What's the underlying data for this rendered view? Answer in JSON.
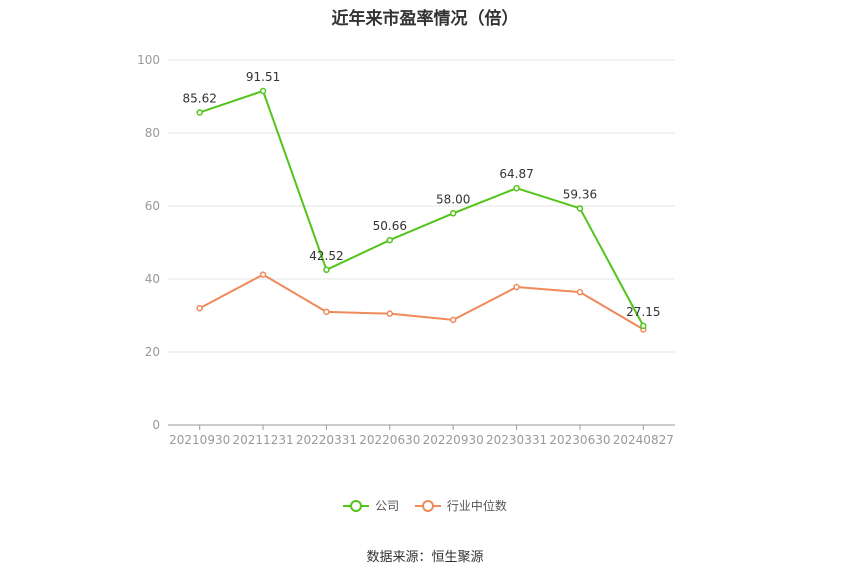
{
  "chart_data": {
    "type": "line",
    "title": "近年来市盈率情况（倍）",
    "categories": [
      "20210930",
      "20211231",
      "20220331",
      "20220630",
      "20220930",
      "20230331",
      "20230630",
      "20240827"
    ],
    "ylim": [
      0,
      100
    ],
    "yticks": [
      0,
      20,
      40,
      60,
      80,
      100
    ],
    "grid": true,
    "legend_position": "bottom",
    "series": [
      {
        "name": "公司",
        "color": "#52c41a",
        "values": [
          85.62,
          91.51,
          42.52,
          50.66,
          58.0,
          64.87,
          59.36,
          27.15
        ],
        "labels": [
          "85.62",
          "91.51",
          "42.52",
          "50.66",
          "58.00",
          "64.87",
          "59.36",
          "27.15"
        ]
      },
      {
        "name": "行业中位数",
        "color": "#f0895a",
        "values": [
          32.0,
          41.2,
          31.0,
          30.5,
          28.8,
          37.8,
          36.4,
          26.2
        ]
      }
    ]
  },
  "source_text": "数据来源：恒生聚源"
}
